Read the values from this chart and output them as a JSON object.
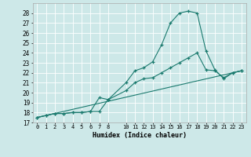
{
  "xlabel": "Humidex (Indice chaleur)",
  "background_color": "#cde8e8",
  "grid_color": "#ffffff",
  "line_color": "#1a7a6e",
  "xlim": [
    -0.5,
    23.5
  ],
  "ylim": [
    17,
    29
  ],
  "yticks": [
    17,
    18,
    19,
    20,
    21,
    22,
    23,
    24,
    25,
    26,
    27,
    28
  ],
  "xtick_vals": [
    0,
    1,
    2,
    3,
    4,
    5,
    6,
    7,
    8,
    10,
    11,
    12,
    13,
    14,
    15,
    16,
    17,
    18,
    19,
    20,
    21,
    22,
    23
  ],
  "xtick_labels": [
    "0",
    "1",
    "2",
    "3",
    "4",
    "5",
    "6",
    "7",
    "8",
    "10",
    "11",
    "12",
    "13",
    "14",
    "15",
    "16",
    "17",
    "18",
    "19",
    "20",
    "21",
    "22",
    "23"
  ],
  "line1_x": [
    0,
    1,
    2,
    3,
    4,
    5,
    6,
    7,
    8,
    10,
    11,
    12,
    13,
    14,
    15,
    16,
    17,
    18,
    19,
    20,
    21,
    22,
    23
  ],
  "line1_y": [
    17.5,
    17.7,
    17.9,
    17.9,
    18.0,
    18.0,
    18.1,
    18.1,
    19.3,
    21.0,
    22.2,
    22.5,
    23.1,
    24.8,
    27.0,
    28.0,
    28.2,
    28.0,
    24.2,
    22.3,
    21.4,
    22.0,
    22.2
  ],
  "line2_x": [
    0,
    1,
    2,
    3,
    4,
    5,
    6,
    7,
    8,
    10,
    11,
    12,
    13,
    14,
    15,
    16,
    17,
    18,
    19,
    20,
    21,
    22,
    23
  ],
  "line2_y": [
    17.5,
    17.7,
    17.9,
    17.9,
    18.0,
    18.0,
    18.1,
    19.5,
    19.3,
    20.2,
    21.0,
    21.4,
    21.5,
    22.0,
    22.5,
    23.0,
    23.5,
    24.0,
    22.3,
    22.2,
    21.5,
    22.0,
    22.2
  ],
  "line3_x": [
    0,
    23
  ],
  "line3_y": [
    17.5,
    22.2
  ]
}
